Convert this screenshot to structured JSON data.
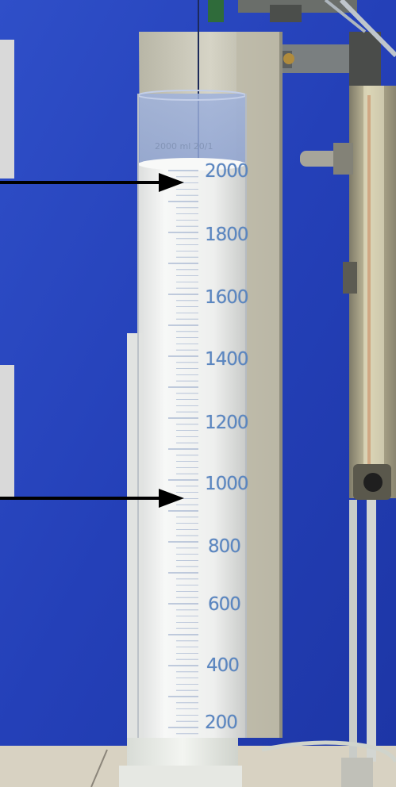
{
  "photo": {
    "subject": "graduated cylinder",
    "colors": {
      "backdrop": "#2a47c0",
      "liquid": "#f1f2f0",
      "scale_text": "#5a86c0",
      "arrow": "#000000",
      "plate": "#c9c7b8"
    }
  },
  "cylinder": {
    "header_text": "2000 ml 20/1",
    "graduations": [
      "2000",
      "1800",
      "1600",
      "1400",
      "1200",
      "1000",
      "800",
      "600",
      "400",
      "200"
    ]
  },
  "annotations": {
    "arrows": [
      {
        "points_to": "2000"
      },
      {
        "points_to": "1000"
      }
    ]
  }
}
